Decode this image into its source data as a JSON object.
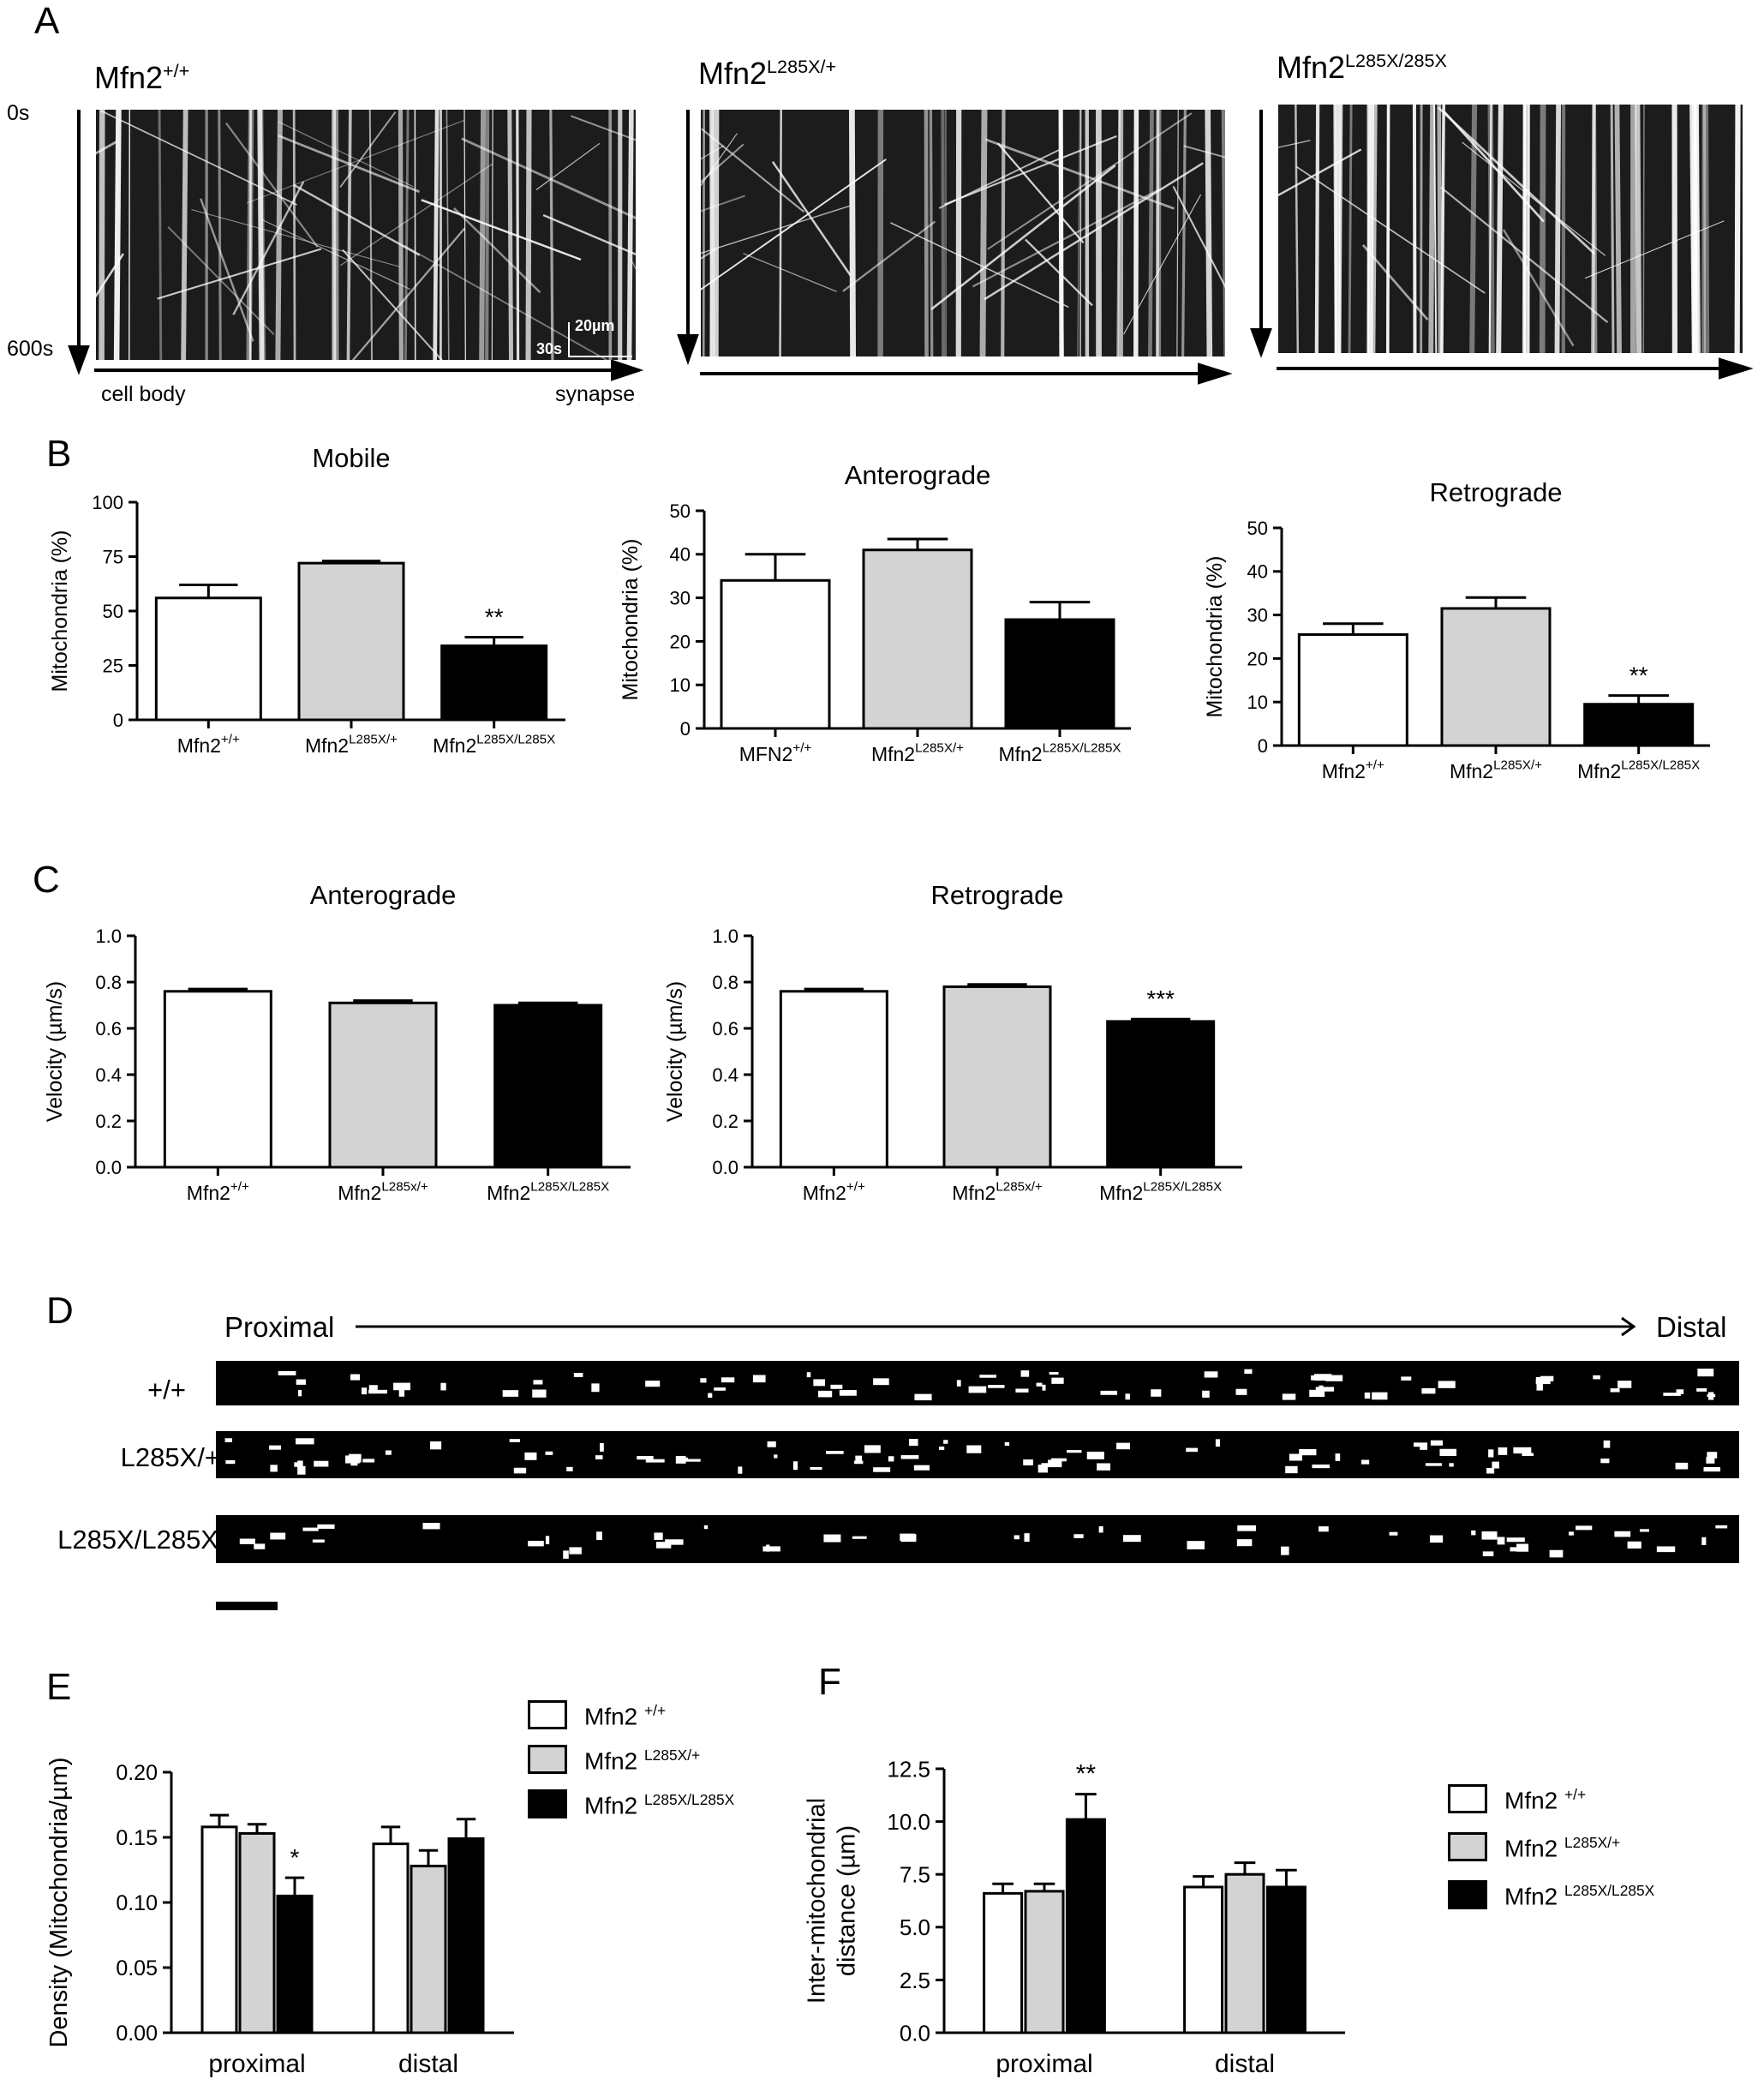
{
  "colors": {
    "wt": "#ffffff",
    "het": "#d3d3d3",
    "hom": "#000000",
    "axis": "#000000"
  },
  "panelA": {
    "letter": "A",
    "genotypes": [
      {
        "base": "Mfn2",
        "sup": "+/+"
      },
      {
        "base": "Mfn2",
        "sup": "L285X/+"
      },
      {
        "base": "Mfn2",
        "sup": "L285X/285X"
      }
    ],
    "time_start": "0s",
    "time_end": "600s",
    "scale_um": "20µm",
    "scale_s": "30s",
    "axis_start": "cell body",
    "axis_end": "synapse"
  },
  "panelB": {
    "letter": "B"
  },
  "panelC": {
    "letter": "C"
  },
  "panelD": {
    "letter": "D",
    "proximal": "Proximal",
    "distal": "Distal",
    "rows": [
      "+/+",
      "L285X/+",
      "L285X/L285X"
    ]
  },
  "panelE": {
    "letter": "E"
  },
  "panelF": {
    "letter": "F"
  },
  "chart_data": [
    {
      "id": "B1",
      "type": "bar",
      "title": "Mobile",
      "xlabel": "",
      "ylabel": "Mitochondria (%)",
      "ylim": [
        0,
        100
      ],
      "yticks": [
        "0",
        "25",
        "50",
        "75",
        "100"
      ],
      "categories": [
        {
          "base": "Mfn2",
          "sup": "+/+"
        },
        {
          "base": "Mfn2",
          "sup": "L285X/+"
        },
        {
          "base": "Mfn2",
          "sup": "L285X/L285X"
        }
      ],
      "values": [
        56,
        72,
        34
      ],
      "errors": [
        6,
        1,
        4
      ],
      "annotations": [
        "",
        "",
        "**"
      ]
    },
    {
      "id": "B2",
      "type": "bar",
      "title": "Anterograde",
      "xlabel": "",
      "ylabel": "Mitochondria (%)",
      "ylim": [
        0,
        50
      ],
      "yticks": [
        "0",
        "10",
        "20",
        "30",
        "40",
        "50"
      ],
      "categories": [
        {
          "base": "MFN2",
          "sup": "+/+"
        },
        {
          "base": "Mfn2",
          "sup": "L285X/+"
        },
        {
          "base": "Mfn2",
          "sup": "L285X/L285X"
        }
      ],
      "values": [
        34,
        41,
        25
      ],
      "errors": [
        6,
        2.5,
        4
      ],
      "annotations": [
        "",
        "",
        ""
      ]
    },
    {
      "id": "B3",
      "type": "bar",
      "title": "Retrograde",
      "xlabel": "",
      "ylabel": "Mitochondria (%)",
      "ylim": [
        0,
        50
      ],
      "yticks": [
        "0",
        "10",
        "20",
        "30",
        "40",
        "50"
      ],
      "categories": [
        {
          "base": "Mfn2",
          "sup": "+/+"
        },
        {
          "base": "Mfn2",
          "sup": "L285X/+"
        },
        {
          "base": "Mfn2",
          "sup": "L285X/L285X"
        }
      ],
      "values": [
        25.5,
        31.5,
        9.5
      ],
      "errors": [
        2.5,
        2.5,
        2
      ],
      "annotations": [
        "",
        "",
        "**"
      ]
    },
    {
      "id": "C1",
      "type": "bar",
      "title": "Anterograde",
      "xlabel": "",
      "ylabel": "Velocity (µm/s)",
      "ylim": [
        0,
        1.0
      ],
      "yticks": [
        "0.0",
        "0.2",
        "0.4",
        "0.6",
        "0.8",
        "1.0"
      ],
      "categories": [
        {
          "base": "Mfn2",
          "sup": "+/+"
        },
        {
          "base": "Mfn2",
          "sup": "L285x/+"
        },
        {
          "base": "Mfn2",
          "sup": "L285X/L285X"
        }
      ],
      "values": [
        0.76,
        0.71,
        0.7
      ],
      "errors": [
        0.01,
        0.01,
        0.01
      ],
      "annotations": [
        "",
        "",
        ""
      ]
    },
    {
      "id": "C2",
      "type": "bar",
      "title": "Retrograde",
      "xlabel": "",
      "ylabel": "Velocity (µm/s)",
      "ylim": [
        0,
        1.0
      ],
      "yticks": [
        "0.0",
        "0.2",
        "0.4",
        "0.6",
        "0.8",
        "1.0"
      ],
      "categories": [
        {
          "base": "Mfn2",
          "sup": "+/+"
        },
        {
          "base": "Mfn2",
          "sup": "L285x/+"
        },
        {
          "base": "Mfn2",
          "sup": "L285X/L285X"
        }
      ],
      "values": [
        0.76,
        0.78,
        0.63
      ],
      "errors": [
        0.01,
        0.01,
        0.01
      ],
      "annotations": [
        "",
        "",
        "***"
      ]
    },
    {
      "id": "E",
      "type": "bar",
      "title": "",
      "xlabel": "",
      "ylabel": "Density (Mitochondria/µm)",
      "ylim": [
        0,
        0.2
      ],
      "yticks": [
        "0.00",
        "0.05",
        "0.10",
        "0.15",
        "0.20"
      ],
      "categories": [
        "proximal",
        "distal"
      ],
      "legend_position": "top-right",
      "series": [
        {
          "name": {
            "base": "Mfn2 ",
            "sup": "+/+"
          },
          "values": [
            0.158,
            0.145
          ],
          "errors": [
            0.009,
            0.013
          ],
          "annotations": [
            "",
            ""
          ]
        },
        {
          "name": {
            "base": "Mfn2 ",
            "sup": "L285X/+"
          },
          "values": [
            0.153,
            0.128
          ],
          "errors": [
            0.007,
            0.012
          ],
          "annotations": [
            "",
            ""
          ]
        },
        {
          "name": {
            "base": "Mfn2 ",
            "sup": "L285X/L285X"
          },
          "values": [
            0.105,
            0.149
          ],
          "errors": [
            0.014,
            0.015
          ],
          "annotations": [
            "*",
            ""
          ]
        }
      ]
    },
    {
      "id": "F",
      "type": "bar",
      "title": "",
      "xlabel": "",
      "ylabel": "Inter-mitochondrial distance (µm)",
      "ylabel_lines": [
        "Inter-mitochondrial",
        "distance (µm)"
      ],
      "ylim": [
        0,
        12.5
      ],
      "yticks": [
        "0.0",
        "2.5",
        "5.0",
        "7.5",
        "10.0",
        "12.5"
      ],
      "categories": [
        "proximal",
        "distal"
      ],
      "legend_position": "right",
      "series": [
        {
          "name": {
            "base": "Mfn2 ",
            "sup": "+/+"
          },
          "values": [
            6.6,
            6.9
          ],
          "errors": [
            0.45,
            0.5
          ],
          "annotations": [
            "",
            ""
          ]
        },
        {
          "name": {
            "base": "Mfn2 ",
            "sup": "L285X/+"
          },
          "values": [
            6.7,
            7.5
          ],
          "errors": [
            0.35,
            0.55
          ],
          "annotations": [
            "",
            ""
          ]
        },
        {
          "name": {
            "base": "Mfn2 ",
            "sup": "L285X/L285X"
          },
          "values": [
            10.1,
            6.9
          ],
          "errors": [
            1.2,
            0.8
          ],
          "annotations": [
            "**",
            ""
          ]
        }
      ]
    }
  ]
}
